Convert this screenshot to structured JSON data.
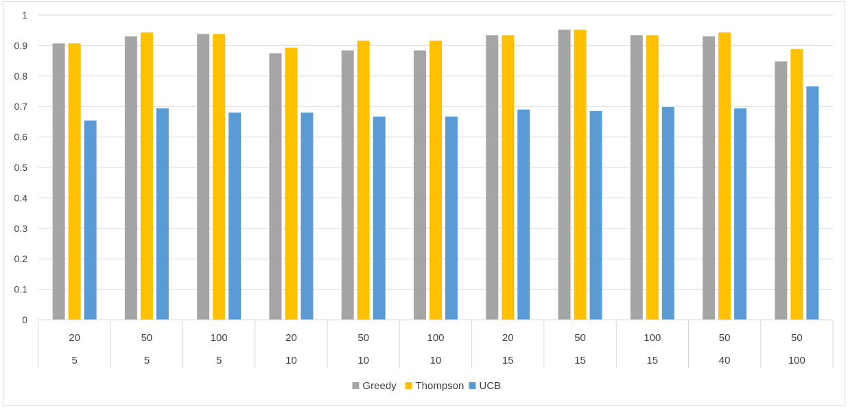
{
  "chart_data": {
    "type": "bar",
    "title": "",
    "xlabel": "",
    "ylabel": "",
    "ylim": [
      0,
      1
    ],
    "yticks": [
      "0",
      "0.1",
      "0.2",
      "0.3",
      "0.4",
      "0.5",
      "0.6",
      "0.7",
      "0.8",
      "0.9",
      "1"
    ],
    "grid": true,
    "legend_position": "bottom",
    "category_levels": {
      "outer": [
        "20",
        "50",
        "100",
        "20",
        "50",
        "100",
        "20",
        "50",
        "100",
        "50",
        "50"
      ],
      "inner": [
        "5",
        "5",
        "5",
        "10",
        "10",
        "10",
        "15",
        "15",
        "15",
        "40",
        "100"
      ]
    },
    "series": [
      {
        "name": "Greedy",
        "color": "#A5A5A5",
        "values": [
          0.907,
          0.93,
          0.938,
          0.875,
          0.884,
          0.884,
          0.934,
          0.952,
          0.934,
          0.93,
          0.848
        ]
      },
      {
        "name": "Thompson",
        "color": "#FFC000",
        "values": [
          0.907,
          0.943,
          0.938,
          0.893,
          0.916,
          0.916,
          0.934,
          0.952,
          0.934,
          0.943,
          0.889
        ]
      },
      {
        "name": "UCB",
        "color": "#5B9BD5",
        "values": [
          0.654,
          0.694,
          0.68,
          0.68,
          0.667,
          0.667,
          0.69,
          0.685,
          0.698,
          0.694,
          0.766
        ]
      }
    ]
  }
}
